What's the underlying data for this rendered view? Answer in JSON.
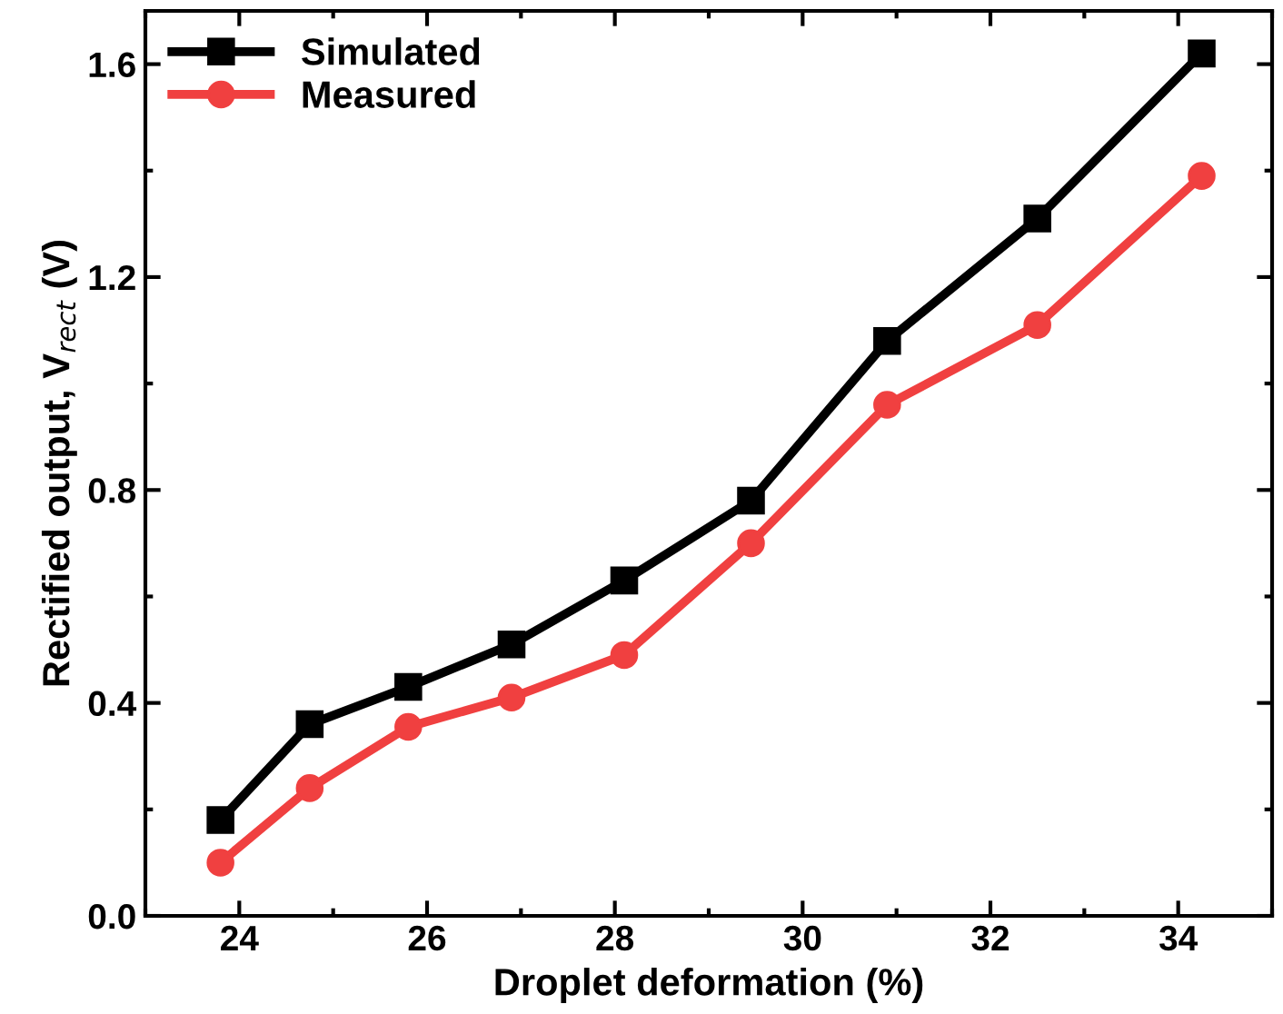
{
  "chart_data": {
    "type": "line",
    "xlabel": "Droplet deformation (%)",
    "ylabel": "Rectified output, V$_{rect}$ (V)",
    "x": [
      23.8,
      24.75,
      25.8,
      26.9,
      28.1,
      29.45,
      30.9,
      32.5,
      34.25
    ],
    "series": [
      {
        "name": "Simulated",
        "color": "#000000",
        "marker": "square",
        "values": [
          0.18,
          0.36,
          0.43,
          0.51,
          0.63,
          0.78,
          1.08,
          1.31,
          1.62
        ]
      },
      {
        "name": "Measured",
        "color": "#f04040",
        "marker": "circle",
        "values": [
          0.1,
          0.24,
          0.355,
          0.41,
          0.49,
          0.7,
          0.96,
          1.11,
          1.39
        ]
      }
    ],
    "xlim": [
      23,
      35
    ],
    "xticks": [
      24,
      26,
      28,
      30,
      32,
      34
    ],
    "ylim": [
      0,
      1.7
    ],
    "yticks": [
      {
        "value": 0,
        "label": "0.0"
      },
      0.4,
      0.8,
      1.2,
      1.6
    ],
    "grid": false,
    "legend": "top left",
    "line_style": "solid"
  }
}
